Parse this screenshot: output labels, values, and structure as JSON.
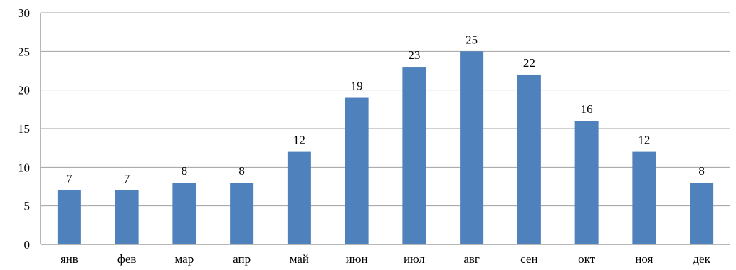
{
  "chart_data": {
    "type": "bar",
    "categories": [
      "янв",
      "фев",
      "мар",
      "апр",
      "май",
      "июн",
      "июл",
      "авг",
      "сен",
      "окт",
      "ноя",
      "дек"
    ],
    "values": [
      7,
      7,
      8,
      8,
      12,
      19,
      23,
      25,
      22,
      16,
      12,
      8
    ],
    "title": "",
    "xlabel": "",
    "ylabel": "",
    "ylim": [
      0,
      30
    ],
    "yticks": [
      0,
      5,
      10,
      15,
      20,
      25,
      30
    ],
    "grid": true,
    "legend": "none",
    "bar_color": "#4f81bd",
    "data_labels": true
  }
}
